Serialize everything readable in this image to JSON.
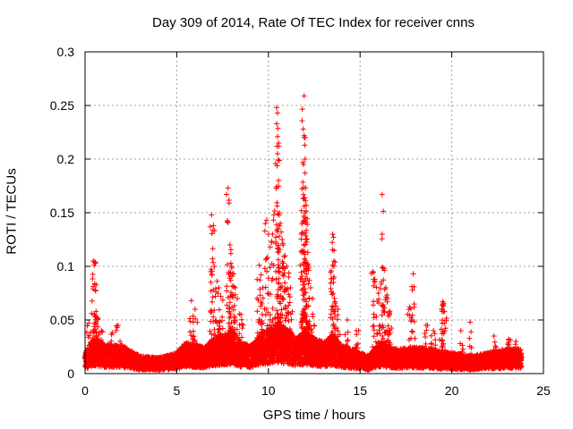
{
  "chart_data": {
    "type": "scatter",
    "title": "Day 309 of 2014, Rate Of TEC Index for receiver cnns",
    "xlabel": "GPS time / hours",
    "ylabel": "ROTI / TECUs",
    "xlim": [
      0,
      25
    ],
    "ylim": [
      0,
      0.3
    ],
    "xticks": [
      0,
      5,
      10,
      15,
      20,
      25
    ],
    "yticks": [
      0,
      0.05,
      0.1,
      0.15,
      0.2,
      0.25,
      0.3
    ],
    "grid": true,
    "marker": "+",
    "series": [
      {
        "name": "ROTI",
        "color": "#ff0000",
        "base_profile": [
          [
            0,
            0.012
          ],
          [
            0.3,
            0.018
          ],
          [
            0.6,
            0.02
          ],
          [
            1,
            0.017
          ],
          [
            2,
            0.016
          ],
          [
            3,
            0.01
          ],
          [
            4,
            0.009
          ],
          [
            5,
            0.012
          ],
          [
            5.5,
            0.018
          ],
          [
            6.5,
            0.015
          ],
          [
            7,
            0.02
          ],
          [
            7.5,
            0.022
          ],
          [
            8,
            0.025
          ],
          [
            8.5,
            0.018
          ],
          [
            9,
            0.016
          ],
          [
            9.5,
            0.022
          ],
          [
            10,
            0.026
          ],
          [
            10.5,
            0.028
          ],
          [
            11,
            0.026
          ],
          [
            11.5,
            0.02
          ],
          [
            12,
            0.024
          ],
          [
            12.5,
            0.02
          ],
          [
            13,
            0.018
          ],
          [
            13.5,
            0.022
          ],
          [
            14,
            0.016
          ],
          [
            15,
            0.012
          ],
          [
            15.5,
            0.01
          ],
          [
            16,
            0.018
          ],
          [
            16.5,
            0.016
          ],
          [
            17,
            0.014
          ],
          [
            18,
            0.015
          ],
          [
            19,
            0.014
          ],
          [
            19.5,
            0.012
          ],
          [
            20,
            0.012
          ],
          [
            21,
            0.01
          ],
          [
            22,
            0.012
          ],
          [
            23,
            0.014
          ],
          [
            23.8,
            0.014
          ]
        ],
        "peaks": [
          [
            0.45,
            0.105
          ],
          [
            0.5,
            0.101
          ],
          [
            0.55,
            0.104
          ],
          [
            0.6,
            0.058
          ],
          [
            0.65,
            0.052
          ],
          [
            0.2,
            0.047
          ],
          [
            0.9,
            0.04
          ],
          [
            1.5,
            0.038
          ],
          [
            1.8,
            0.045
          ],
          [
            5.8,
            0.068
          ],
          [
            6.0,
            0.06
          ],
          [
            5.9,
            0.048
          ],
          [
            6.9,
            0.148
          ],
          [
            7.0,
            0.138
          ],
          [
            6.95,
            0.107
          ],
          [
            7.2,
            0.086
          ],
          [
            7.3,
            0.08
          ],
          [
            7.4,
            0.072
          ],
          [
            7.8,
            0.173
          ],
          [
            7.85,
            0.159
          ],
          [
            7.9,
            0.12
          ],
          [
            7.95,
            0.112
          ],
          [
            8.0,
            0.1
          ],
          [
            8.1,
            0.093
          ],
          [
            8.2,
            0.08
          ],
          [
            8.3,
            0.07
          ],
          [
            8.5,
            0.055
          ],
          [
            9.5,
            0.101
          ],
          [
            9.6,
            0.092
          ],
          [
            9.7,
            0.08
          ],
          [
            9.9,
            0.143
          ],
          [
            10.0,
            0.13
          ],
          [
            10.1,
            0.118
          ],
          [
            10.3,
            0.148
          ],
          [
            10.45,
            0.248
          ],
          [
            10.5,
            0.243
          ],
          [
            10.45,
            0.233
          ],
          [
            10.5,
            0.221
          ],
          [
            10.5,
            0.205
          ],
          [
            10.55,
            0.18
          ],
          [
            10.6,
            0.15
          ],
          [
            10.65,
            0.14
          ],
          [
            10.7,
            0.132
          ],
          [
            10.75,
            0.125
          ],
          [
            10.8,
            0.12
          ],
          [
            10.9,
            0.11
          ],
          [
            11.0,
            0.1
          ],
          [
            11.1,
            0.09
          ],
          [
            11.2,
            0.08
          ],
          [
            11.95,
            0.259
          ],
          [
            11.9,
            0.228
          ],
          [
            11.95,
            0.222
          ],
          [
            12.0,
            0.22
          ],
          [
            11.98,
            0.213
          ],
          [
            12.0,
            0.2
          ],
          [
            12.0,
            0.187
          ],
          [
            11.9,
            0.163
          ],
          [
            11.95,
            0.156
          ],
          [
            12.0,
            0.15
          ],
          [
            11.8,
            0.13
          ],
          [
            12.1,
            0.125
          ],
          [
            12.15,
            0.113
          ],
          [
            12.2,
            0.1
          ],
          [
            12.3,
            0.08
          ],
          [
            12.4,
            0.07
          ],
          [
            13.5,
            0.13
          ],
          [
            13.55,
            0.127
          ],
          [
            13.5,
            0.101
          ],
          [
            13.55,
            0.085
          ],
          [
            13.6,
            0.07
          ],
          [
            13.8,
            0.06
          ],
          [
            14.3,
            0.05
          ],
          [
            14.8,
            0.04
          ],
          [
            15.7,
            0.095
          ],
          [
            15.8,
            0.088
          ],
          [
            16.0,
            0.075
          ],
          [
            16.2,
            0.167
          ],
          [
            16.2,
            0.13
          ],
          [
            16.3,
            0.098
          ],
          [
            16.4,
            0.08
          ],
          [
            16.5,
            0.07
          ],
          [
            16.6,
            0.055
          ],
          [
            17.7,
            0.062
          ],
          [
            17.9,
            0.093
          ],
          [
            18.6,
            0.045
          ],
          [
            19.0,
            0.04
          ],
          [
            19.5,
            0.067
          ],
          [
            19.55,
            0.063
          ],
          [
            19.6,
            0.058
          ],
          [
            19.45,
            0.06
          ],
          [
            20.5,
            0.04
          ],
          [
            21.0,
            0.048
          ],
          [
            22.3,
            0.035
          ],
          [
            23.1,
            0.032
          ],
          [
            23.5,
            0.03
          ]
        ]
      }
    ]
  }
}
